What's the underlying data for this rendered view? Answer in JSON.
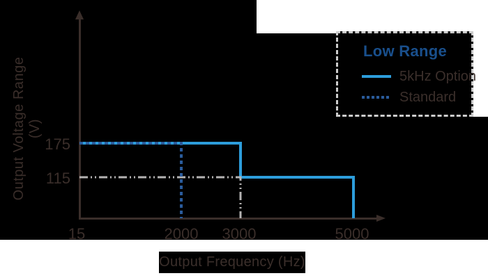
{
  "colors": {
    "background": "#000000",
    "page_white": "#FFFFFF",
    "axis": "#3A2E2A",
    "text_dark": "#3B2F2B",
    "solid_line_blue": "#2D9DDB",
    "dashed_line_blue": "#2A5B9B",
    "guide_line_gray": "#B5B3B3",
    "legend_title_blue": "#194F8C",
    "legend_border_gray": "#CCCCCC"
  },
  "axes": {
    "y_title": "Output Voltage Range (V)",
    "x_title": "Output Frequency (Hz)",
    "y_ticks": [
      "175",
      "115"
    ],
    "x_ticks": [
      "15",
      "2000",
      "3000",
      "5000"
    ]
  },
  "legend": {
    "title": "Low Range",
    "items": [
      {
        "label": "5kHz Option",
        "style": "solid"
      },
      {
        "label": "Standard",
        "style": "dashed"
      }
    ]
  },
  "chart_data": {
    "type": "line",
    "title": "",
    "xlabel": "Output Frequency (Hz)",
    "ylabel": "Output Voltage Range (V)",
    "x_ticks": [
      15,
      2000,
      3000,
      5000
    ],
    "y_ticks": [
      115,
      175
    ],
    "xlim": [
      15,
      5600
    ],
    "ylim": [
      0,
      240
    ],
    "grid": false,
    "legend_title": "Low Range",
    "legend_position": "top-right",
    "series": [
      {
        "name": "5kHz Option",
        "style": "solid",
        "color": "#2D9DDB",
        "points": [
          [
            15,
            175
          ],
          [
            3000,
            175
          ],
          [
            3000,
            115
          ],
          [
            5000,
            115
          ],
          [
            5000,
            0
          ]
        ]
      },
      {
        "name": "Standard",
        "style": "dashed",
        "color": "#2A5B9B",
        "points": [
          [
            15,
            175
          ],
          [
            2000,
            175
          ],
          [
            2000,
            0
          ]
        ]
      }
    ],
    "guides": [
      {
        "name": "115V at 3000Hz reference",
        "style": "dash-dot-dot",
        "color": "#B5B3B3",
        "points": [
          [
            15,
            115
          ],
          [
            3000,
            115
          ],
          [
            3000,
            0
          ]
        ]
      }
    ]
  }
}
